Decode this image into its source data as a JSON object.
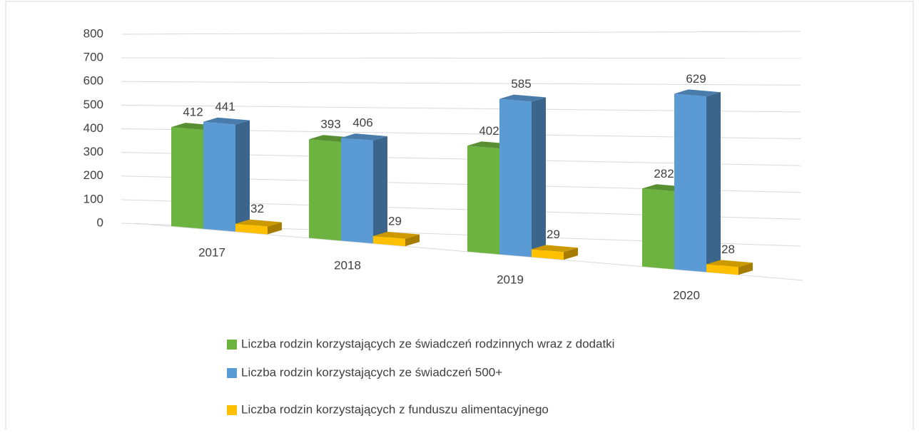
{
  "chart_data": {
    "type": "bar3d",
    "categories": [
      "2017",
      "2018",
      "2019",
      "2020"
    ],
    "series": [
      {
        "name": "Liczba rodzin korzystających ze świadczeń rodzinnych wraz z dodatki",
        "color": "#6db33f",
        "values": [
          412,
          393,
          402,
          282
        ]
      },
      {
        "name": "Liczba rodzin korzystających ze świadczeń 500+",
        "color": "#5b9bd5",
        "values": [
          441,
          406,
          585,
          629
        ]
      },
      {
        "name": "Liczba rodzin korzystających z funduszu alimentacyjnego",
        "color": "#ffc000",
        "values": [
          32,
          29,
          29,
          28
        ]
      }
    ],
    "ylim": [
      0,
      800
    ],
    "yticks": [
      0,
      100,
      200,
      300,
      400,
      500,
      600,
      700,
      800
    ],
    "grid": true,
    "legend": "bottom"
  }
}
